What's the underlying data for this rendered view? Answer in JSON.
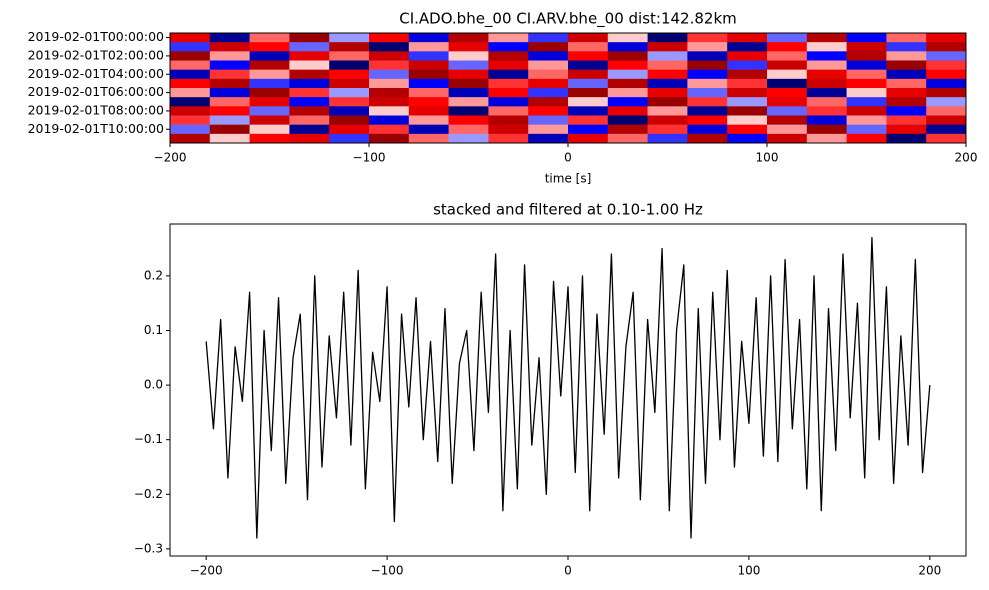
{
  "chart_data": [
    {
      "type": "heatmap",
      "title": "CI.ADO.bhe_00 CI.ARV.bhe_00  dist:142.82km",
      "x_label": "time [s]",
      "colormap": "seismic",
      "clim": [
        -1,
        1
      ],
      "xlim": [
        -200,
        200
      ],
      "xticks": [
        {
          "value": -200,
          "label": "−200"
        },
        {
          "value": -100,
          "label": "−100"
        },
        0,
        100,
        200
      ],
      "categories": [
        "2019-02-01T00:00:00",
        null,
        "2019-02-01T02:00:00",
        null,
        "2019-02-01T04:00:00",
        null,
        "2019-02-01T06:00:00",
        null,
        "2019-02-01T08:00:00",
        null,
        "2019-02-01T10:00:00",
        null
      ],
      "values": [
        [
          0.6,
          -0.8,
          0.3,
          0.9,
          -0.2,
          0.5,
          -0.6,
          0.8,
          0.2,
          -0.4,
          0.7,
          0.1,
          -0.9,
          0.4,
          0.6,
          -0.3,
          0.8,
          -0.5,
          0.3,
          0.6
        ],
        [
          -0.4,
          0.7,
          0.5,
          -0.3,
          0.8,
          -0.9,
          0.2,
          0.6,
          -0.5,
          0.9,
          0.3,
          -0.6,
          0.7,
          0.2,
          -0.8,
          0.5,
          0.1,
          0.7,
          -0.4,
          0.8
        ],
        [
          0.9,
          0.2,
          -0.7,
          0.6,
          0.3,
          0.7,
          -0.4,
          0.1,
          0.8,
          -0.6,
          0.5,
          0.9,
          -0.2,
          -0.7,
          0.6,
          0.3,
          -0.5,
          0.8,
          0.2,
          -0.3
        ],
        [
          0.3,
          -0.5,
          0.8,
          0.1,
          -0.9,
          0.4,
          0.7,
          -0.3,
          0.6,
          0.2,
          -0.8,
          0.5,
          0.3,
          0.9,
          -0.4,
          0.7,
          0.2,
          -0.6,
          0.9,
          0.4
        ],
        [
          -0.7,
          0.4,
          0.2,
          0.8,
          0.5,
          -0.3,
          0.9,
          0.6,
          -0.8,
          0.3,
          0.7,
          -0.2,
          0.5,
          -0.5,
          0.8,
          0.1,
          0.6,
          0.3,
          -0.7,
          0.5
        ],
        [
          0.5,
          0.8,
          -0.4,
          -0.6,
          0.7,
          0.2,
          -0.5,
          0.9,
          0.4,
          0.6,
          -0.3,
          0.8,
          -0.7,
          0.2,
          0.4,
          -0.9,
          0.7,
          0.5,
          0.3,
          -0.6
        ],
        [
          0.2,
          -0.6,
          0.9,
          0.4,
          -0.2,
          0.8,
          0.3,
          -0.7,
          0.5,
          -0.4,
          0.9,
          0.2,
          0.6,
          -0.3,
          0.7,
          0.5,
          -0.8,
          0.1,
          0.6,
          0.8
        ],
        [
          -0.9,
          0.3,
          0.6,
          -0.5,
          0.4,
          0.7,
          0.5,
          0.2,
          -0.6,
          0.8,
          0.1,
          -0.5,
          0.9,
          0.4,
          -0.2,
          0.6,
          0.3,
          -0.4,
          0.8,
          -0.2
        ],
        [
          0.7,
          0.5,
          -0.3,
          0.8,
          -0.7,
          0.1,
          0.6,
          -0.9,
          0.3,
          0.5,
          -0.7,
          0.6,
          0.2,
          -0.8,
          0.9,
          -0.3,
          0.4,
          0.7,
          -0.5,
          0.3
        ],
        [
          0.4,
          -0.2,
          0.7,
          0.3,
          0.9,
          -0.6,
          0.2,
          0.5,
          0.8,
          -0.3,
          0.4,
          -0.9,
          0.7,
          0.5,
          0.1,
          0.8,
          -0.6,
          0.2,
          0.4,
          0.7
        ],
        [
          -0.3,
          0.9,
          0.1,
          -0.8,
          0.6,
          0.4,
          -0.7,
          0.3,
          0.7,
          0.2,
          -0.5,
          0.8,
          0.4,
          -0.6,
          0.5,
          0.2,
          0.9,
          -0.3,
          0.6,
          -0.8
        ],
        [
          0.8,
          0.1,
          0.5,
          0.6,
          -0.4,
          0.9,
          0.3,
          -0.2,
          0.4,
          -0.7,
          0.6,
          0.3,
          -0.4,
          0.8,
          -0.5,
          0.7,
          0.2,
          0.5,
          -0.9,
          0.4
        ]
      ]
    },
    {
      "type": "line",
      "title": "stacked and filtered at 0.10-1.00 Hz",
      "color": "#000000",
      "xlim": [
        -220,
        220
      ],
      "ylim": [
        -0.313,
        0.295
      ],
      "xticks": [
        {
          "value": -200,
          "label": "−200"
        },
        {
          "value": -100,
          "label": "−100"
        },
        0,
        100,
        200
      ],
      "yticks": [
        {
          "value": -0.3,
          "label": "−0.3"
        },
        {
          "value": -0.2,
          "label": "−0.2"
        },
        {
          "value": -0.1,
          "label": "−0.1"
        },
        {
          "value": 0,
          "label": "0.0"
        },
        0.1,
        0.2
      ],
      "x": [
        -200,
        -196,
        -192,
        -188,
        -184,
        -180,
        -176,
        -172,
        -168,
        -164,
        -160,
        -156,
        -152,
        -148,
        -144,
        -140,
        -136,
        -132,
        -128,
        -124,
        -120,
        -116,
        -112,
        -108,
        -104,
        -100,
        -96,
        -92,
        -88,
        -84,
        -80,
        -76,
        -72,
        -68,
        -64,
        -60,
        -56,
        -52,
        -48,
        -44,
        -40,
        -36,
        -32,
        -28,
        -24,
        -20,
        -16,
        -12,
        -8,
        -4,
        0,
        4,
        8,
        12,
        16,
        20,
        24,
        28,
        32,
        36,
        40,
        44,
        48,
        52,
        56,
        60,
        64,
        68,
        72,
        76,
        80,
        84,
        88,
        92,
        96,
        100,
        104,
        108,
        112,
        116,
        120,
        124,
        128,
        132,
        136,
        140,
        144,
        148,
        152,
        156,
        160,
        164,
        168,
        172,
        176,
        180,
        184,
        188,
        192,
        196,
        200
      ],
      "values": [
        0.08,
        -0.08,
        0.12,
        -0.17,
        0.07,
        -0.03,
        0.17,
        -0.28,
        0.1,
        -0.12,
        0.16,
        -0.18,
        0.05,
        0.13,
        -0.21,
        0.2,
        -0.15,
        0.09,
        -0.06,
        0.17,
        -0.11,
        0.21,
        -0.19,
        0.06,
        -0.03,
        0.18,
        -0.25,
        0.13,
        -0.04,
        0.16,
        -0.1,
        0.08,
        -0.14,
        0.14,
        -0.18,
        0.04,
        0.1,
        -0.12,
        0.17,
        -0.05,
        0.24,
        -0.23,
        0.1,
        -0.19,
        0.22,
        -0.11,
        0.05,
        -0.2,
        0.19,
        -0.02,
        0.18,
        -0.16,
        0.2,
        -0.23,
        0.13,
        -0.09,
        0.24,
        -0.17,
        0.07,
        0.17,
        -0.21,
        0.12,
        -0.05,
        0.25,
        -0.23,
        0.1,
        0.22,
        -0.28,
        0.14,
        -0.18,
        0.17,
        -0.1,
        0.21,
        -0.15,
        0.08,
        -0.07,
        0.16,
        -0.13,
        0.2,
        -0.14,
        0.23,
        -0.08,
        0.12,
        -0.19,
        0.2,
        -0.23,
        0.14,
        -0.12,
        0.24,
        -0.06,
        0.15,
        -0.17,
        0.27,
        -0.1,
        0.18,
        -0.18,
        0.09,
        -0.11,
        0.23,
        -0.16,
        0.0
      ]
    }
  ]
}
